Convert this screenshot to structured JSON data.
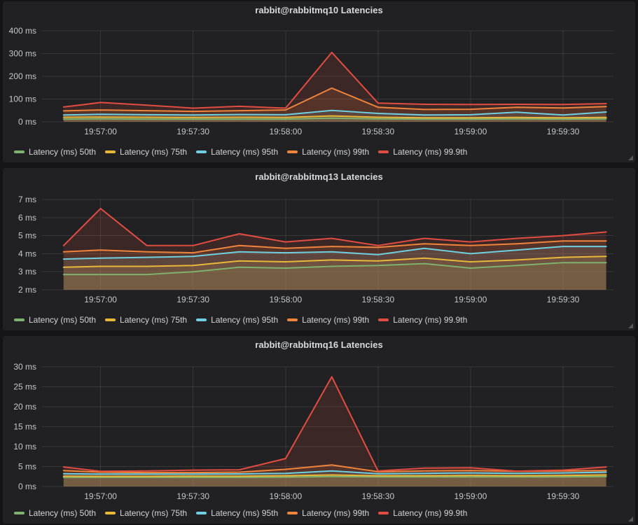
{
  "colors": {
    "page_bg": "#141416",
    "panel_bg": "#212124",
    "grid": "rgba(255,255,255,0.10)",
    "title_text": "#d8d9da",
    "tick_text": "#c6c7c9",
    "legend_text": "#d4d5d7",
    "p50": "#7EB26D",
    "p75": "#EAB839",
    "p95": "#6ED0E0",
    "p99": "#EF843C",
    "p999": "#E24D42"
  },
  "chart_data": [
    {
      "type": "line",
      "title": "rabbit@rabbitmq10 Latencies",
      "ylabel": "",
      "xlabel": "",
      "y_unit": "ms",
      "ylim": [
        0,
        400
      ],
      "y_ticks": [
        0,
        100,
        200,
        300,
        400
      ],
      "y_tick_labels": [
        "0 ms",
        "100 ms",
        "200 ms",
        "300 ms",
        "400 ms"
      ],
      "x_ticks": [
        "19:57:00",
        "19:57:30",
        "19:58:00",
        "19:58:30",
        "19:59:00",
        "19:59:30"
      ],
      "x_domain": [
        "19:56:41",
        "19:59:45"
      ],
      "grid": true,
      "legend_position": "bottom",
      "fill_opacity": 0.14,
      "x": [
        "19:56:48",
        "19:57:00",
        "19:57:15",
        "19:57:30",
        "19:57:45",
        "19:58:00",
        "19:58:15",
        "19:58:30",
        "19:58:45",
        "19:59:00",
        "19:59:15",
        "19:59:30",
        "19:59:44"
      ],
      "series": [
        {
          "name": "Latency (ms) 50th",
          "color": "#7EB26D",
          "values": [
            12,
            13,
            12,
            12,
            12,
            12,
            16,
            13,
            12,
            12,
            13,
            12,
            13
          ]
        },
        {
          "name": "Latency (ms) 75th",
          "color": "#EAB839",
          "values": [
            20,
            21,
            20,
            19,
            20,
            19,
            26,
            20,
            18,
            18,
            19,
            18,
            19
          ]
        },
        {
          "name": "Latency (ms) 95th",
          "color": "#6ED0E0",
          "values": [
            30,
            33,
            31,
            30,
            32,
            31,
            50,
            37,
            30,
            31,
            42,
            30,
            43
          ]
        },
        {
          "name": "Latency (ms) 99th",
          "color": "#EF843C",
          "values": [
            48,
            52,
            49,
            46,
            49,
            52,
            148,
            64,
            54,
            55,
            64,
            61,
            67
          ]
        },
        {
          "name": "Latency (ms) 99.9th",
          "color": "#E24D42",
          "values": [
            65,
            85,
            73,
            60,
            68,
            60,
            305,
            82,
            77,
            76,
            77,
            76,
            80
          ]
        }
      ]
    },
    {
      "type": "line",
      "title": "rabbit@rabbitmq13 Latencies",
      "ylabel": "",
      "xlabel": "",
      "y_unit": "ms",
      "ylim": [
        2,
        7
      ],
      "y_ticks": [
        2,
        3,
        4,
        5,
        6,
        7
      ],
      "y_tick_labels": [
        "2 ms",
        "3 ms",
        "4 ms",
        "5 ms",
        "6 ms",
        "7 ms"
      ],
      "x_ticks": [
        "19:57:00",
        "19:57:30",
        "19:58:00",
        "19:58:30",
        "19:59:00",
        "19:59:30"
      ],
      "x_domain": [
        "19:56:41",
        "19:59:45"
      ],
      "grid": true,
      "legend_position": "bottom",
      "fill_opacity": 0.14,
      "x": [
        "19:56:48",
        "19:57:00",
        "19:57:15",
        "19:57:30",
        "19:57:45",
        "19:58:00",
        "19:58:15",
        "19:58:30",
        "19:58:45",
        "19:59:00",
        "19:59:15",
        "19:59:30",
        "19:59:44"
      ],
      "series": [
        {
          "name": "Latency (ms) 50th",
          "color": "#7EB26D",
          "values": [
            2.85,
            2.85,
            2.85,
            3.0,
            3.25,
            3.2,
            3.3,
            3.35,
            3.45,
            3.2,
            3.35,
            3.5,
            3.5
          ]
        },
        {
          "name": "Latency (ms) 75th",
          "color": "#EAB839",
          "values": [
            3.25,
            3.3,
            3.3,
            3.35,
            3.6,
            3.55,
            3.65,
            3.6,
            3.75,
            3.55,
            3.65,
            3.8,
            3.85
          ]
        },
        {
          "name": "Latency (ms) 95th",
          "color": "#6ED0E0",
          "values": [
            3.7,
            3.75,
            3.8,
            3.85,
            4.1,
            4.05,
            4.1,
            3.95,
            4.3,
            4.0,
            4.2,
            4.4,
            4.4
          ]
        },
        {
          "name": "Latency (ms) 99th",
          "color": "#EF843C",
          "values": [
            4.1,
            4.2,
            4.1,
            4.05,
            4.45,
            4.3,
            4.4,
            4.35,
            4.55,
            4.45,
            4.55,
            4.7,
            4.7
          ]
        },
        {
          "name": "Latency (ms) 99.9th",
          "color": "#E24D42",
          "values": [
            4.45,
            6.5,
            4.45,
            4.45,
            5.1,
            4.65,
            4.85,
            4.45,
            4.85,
            4.65,
            4.85,
            5.0,
            5.2
          ]
        }
      ]
    },
    {
      "type": "line",
      "title": "rabbit@rabbitmq16 Latencies",
      "ylabel": "",
      "xlabel": "",
      "y_unit": "ms",
      "ylim": [
        0,
        30
      ],
      "y_ticks": [
        0,
        5,
        10,
        15,
        20,
        25,
        30
      ],
      "y_tick_labels": [
        "0 ms",
        "5 ms",
        "10 ms",
        "15 ms",
        "20 ms",
        "25 ms",
        "30 ms"
      ],
      "x_ticks": [
        "19:57:00",
        "19:57:30",
        "19:58:00",
        "19:58:30",
        "19:59:00",
        "19:59:30"
      ],
      "x_domain": [
        "19:56:41",
        "19:59:45"
      ],
      "grid": true,
      "legend_position": "bottom",
      "fill_opacity": 0.14,
      "x": [
        "19:56:48",
        "19:57:00",
        "19:57:15",
        "19:57:30",
        "19:57:45",
        "19:58:00",
        "19:58:15",
        "19:58:30",
        "19:58:45",
        "19:59:00",
        "19:59:15",
        "19:59:30",
        "19:59:44"
      ],
      "series": [
        {
          "name": "Latency (ms) 50th",
          "color": "#7EB26D",
          "values": [
            2.3,
            2.3,
            2.3,
            2.3,
            2.3,
            2.35,
            2.5,
            2.4,
            2.4,
            2.4,
            2.4,
            2.4,
            2.5
          ]
        },
        {
          "name": "Latency (ms) 75th",
          "color": "#EAB839",
          "values": [
            2.6,
            2.55,
            2.55,
            2.6,
            2.6,
            2.7,
            2.9,
            2.7,
            2.7,
            2.75,
            2.7,
            2.75,
            2.9
          ]
        },
        {
          "name": "Latency (ms) 95th",
          "color": "#6ED0E0",
          "values": [
            3.2,
            3.1,
            3.1,
            3.1,
            3.15,
            3.3,
            3.9,
            3.2,
            3.3,
            3.4,
            3.3,
            3.4,
            3.6
          ]
        },
        {
          "name": "Latency (ms) 99th",
          "color": "#EF843C",
          "values": [
            4.0,
            3.6,
            3.5,
            3.5,
            3.6,
            4.3,
            5.4,
            3.7,
            3.9,
            4.0,
            3.8,
            3.9,
            4.0
          ]
        },
        {
          "name": "Latency (ms) 99.9th",
          "color": "#E24D42",
          "values": [
            4.9,
            3.8,
            3.9,
            4.1,
            4.2,
            7.0,
            27.5,
            3.9,
            4.6,
            4.7,
            3.85,
            4.1,
            4.9
          ]
        }
      ]
    }
  ]
}
